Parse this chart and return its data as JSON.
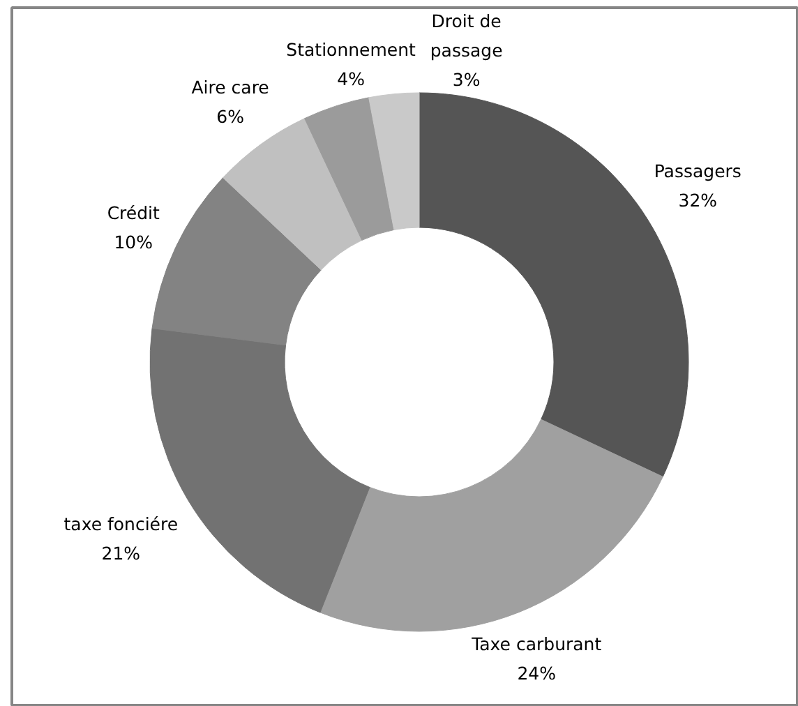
{
  "chart_data": {
    "type": "donut",
    "categories": [
      "Passagers",
      "Taxe carburant",
      "taxe fonciére",
      "Crédit",
      "Aire care",
      "Stationnement",
      "Droit de passage"
    ],
    "values": [
      32,
      24,
      21,
      10,
      6,
      4,
      3
    ],
    "value_labels": [
      "32%",
      "24%",
      "21%",
      "10%",
      "6%",
      "4%",
      "3%"
    ],
    "colors": [
      "#555555",
      "#a0a0a0",
      "#727272",
      "#838383",
      "#c0c0c0",
      "#9b9b9b",
      "#c9c9c9"
    ]
  }
}
